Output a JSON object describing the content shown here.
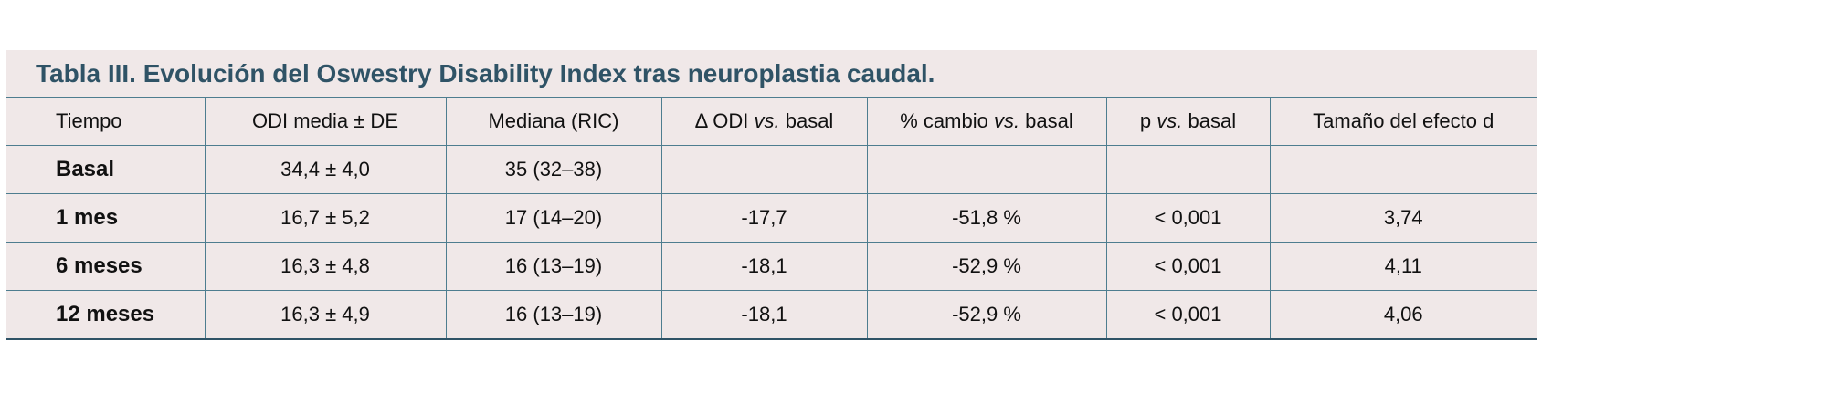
{
  "title": "Tabla III. Evolución del Oswestry Disability Index tras neuroplastia caudal.",
  "headers": {
    "c0": "Tiempo",
    "c1": "ODI media ± DE",
    "c2": "Mediana (RIC)",
    "c3_pre": "Δ ODI ",
    "c3_em": "vs.",
    "c3_post": " basal",
    "c4_pre": "% cambio ",
    "c4_em": "vs.",
    "c4_post": " basal",
    "c5_pre": "p ",
    "c5_em": "vs.",
    "c5_post": " basal",
    "c6": "Tamaño del efecto d"
  },
  "rows": [
    {
      "tiempo": "Basal",
      "media": "34,4 ± 4,0",
      "mediana": "35 (32–38)",
      "delta": "",
      "cambio": "",
      "p": "",
      "d": ""
    },
    {
      "tiempo": "1 mes",
      "media": "16,7 ± 5,2",
      "mediana": "17 (14–20)",
      "delta": "-17,7",
      "cambio": "-51,8 %",
      "p": "< 0,001",
      "d": "3,74"
    },
    {
      "tiempo": "6 meses",
      "media": "16,3 ± 4,8",
      "mediana": "16 (13–19)",
      "delta": "-18,1",
      "cambio": "-52,9 %",
      "p": "< 0,001",
      "d": "4,11"
    },
    {
      "tiempo": "12 meses",
      "media": "16,3 ± 4,9",
      "mediana": "16 (13–19)",
      "delta": "-18,1",
      "cambio": "-52,9 %",
      "p": "< 0,001",
      "d": "4,06"
    }
  ]
}
